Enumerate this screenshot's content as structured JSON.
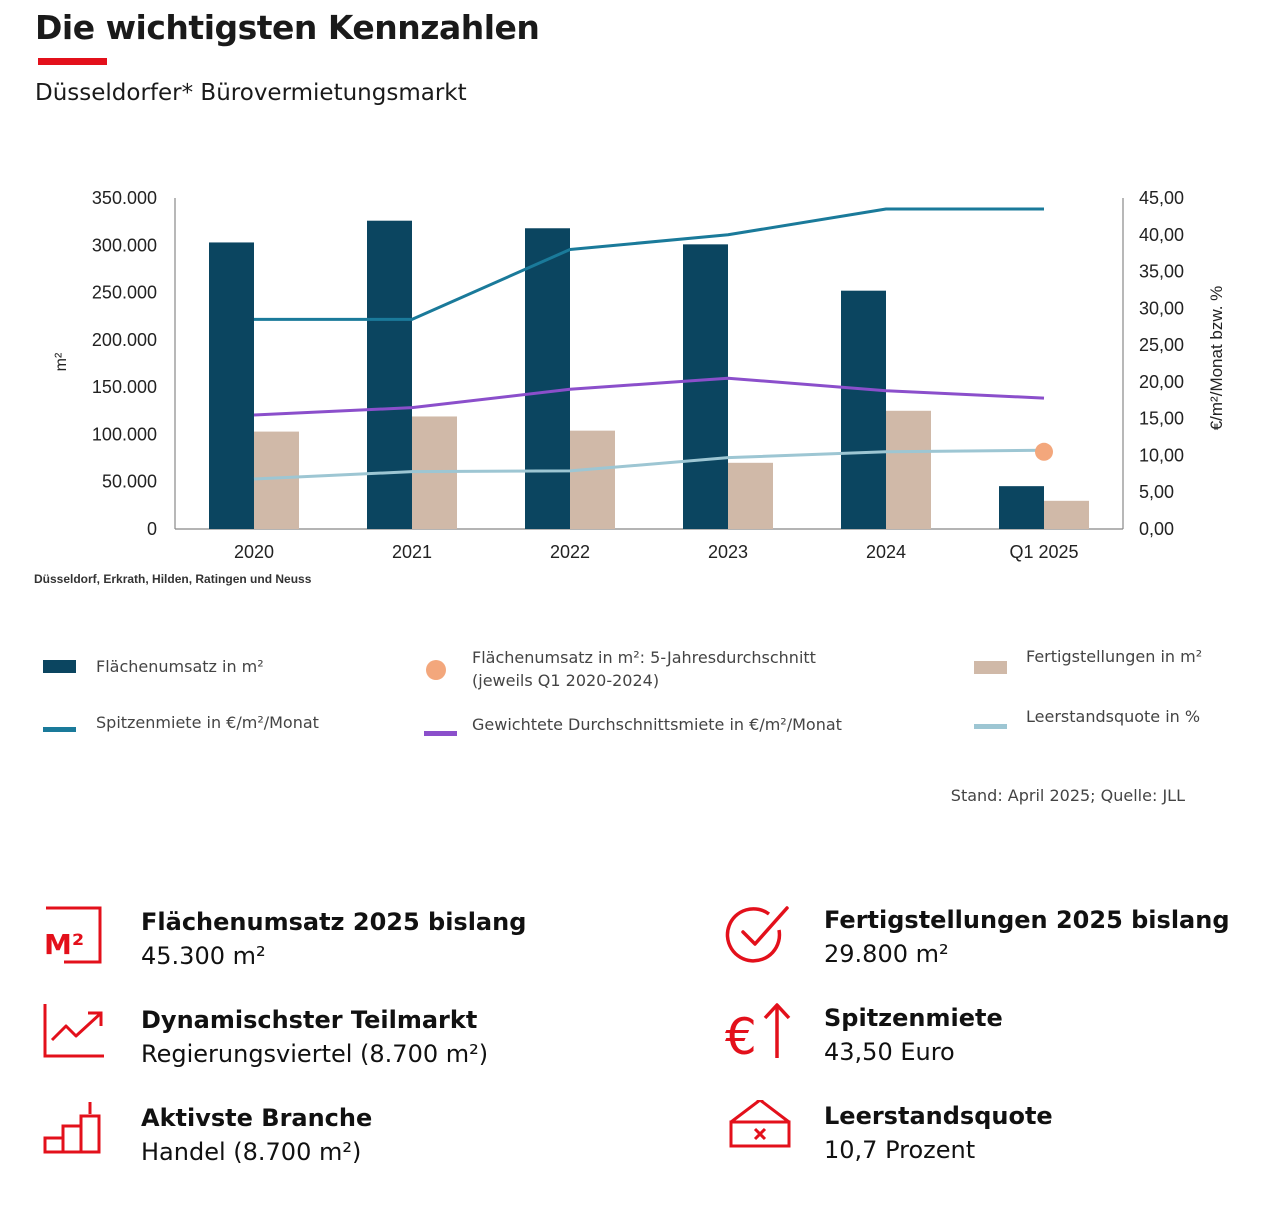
{
  "header": {
    "title": "Die wichtigsten Kennzahlen",
    "subtitle": "Düsseldorfer* Bürovermietungsmarkt",
    "accent_color": "#e3101b"
  },
  "chart_data": {
    "type": "bar",
    "categories": [
      "2020",
      "2021",
      "2022",
      "2023",
      "2024",
      "Q1 2025"
    ],
    "ylabel_left": "m²",
    "ylabel_right": "€/m²/Monat bzw. %",
    "ylim_left": [
      0,
      350000
    ],
    "ylim_right": [
      0,
      45
    ],
    "yticks_left": [
      "350.000",
      "300.000",
      "250.000",
      "200.000",
      "150.000",
      "100.000",
      "50.000",
      "0"
    ],
    "yticks_right": [
      "45,00",
      "40,00",
      "35,00",
      "30,00",
      "25,00",
      "20,00",
      "15,00",
      "10,00",
      "5,00",
      "0,00"
    ],
    "series": [
      {
        "name": "Flächenumsatz in m²",
        "kind": "bar",
        "axis": "left",
        "color": "#0b4560",
        "values": [
          303000,
          326000,
          318000,
          301000,
          252000,
          45300
        ]
      },
      {
        "name": "Fertigstellungen in m²",
        "kind": "bar",
        "axis": "left",
        "color": "#d0b9a8",
        "values": [
          103000,
          119000,
          104000,
          70000,
          125000,
          29800
        ]
      },
      {
        "name": "Spitzenmiete in €/m²/Monat",
        "kind": "line",
        "axis": "right",
        "color": "#1a7a9a",
        "values": [
          28.5,
          28.5,
          38.0,
          40.0,
          43.5,
          43.5
        ]
      },
      {
        "name": "Gewichtete Durchschnittsmiete in €/m²/Monat",
        "kind": "line",
        "axis": "right",
        "color": "#8b4fcb",
        "values": [
          15.5,
          16.5,
          19.0,
          20.5,
          18.8,
          17.8
        ]
      },
      {
        "name": "Leerstandsquote in %",
        "kind": "line",
        "axis": "right",
        "color": "#9dc6d3",
        "values": [
          6.8,
          7.8,
          7.9,
          9.7,
          10.5,
          10.7
        ]
      },
      {
        "name": "Flächenumsatz in m²: 5-Jahresdurchschnitt (jeweils Q1 2020-2024)",
        "kind": "point",
        "axis": "right",
        "color": "#f3a77c",
        "category": "Q1 2025",
        "value": 10.5
      }
    ],
    "footnote": "Düsseldorf, Erkrath, Hilden, Ratingen und Neuss"
  },
  "legend": [
    {
      "label": "Flächenumsatz in m²",
      "swatch": "bar",
      "color": "#0b4560"
    },
    {
      "label": "Flächenumsatz in m²: 5-Jahresdurchschnitt",
      "label2": "(jeweils Q1 2020-2024)",
      "swatch": "dot",
      "color": "#f3a77c"
    },
    {
      "label": "Fertigstellungen in m²",
      "swatch": "bar",
      "color": "#d0b9a8"
    },
    {
      "label": "Spitzenmiete in €/m²/Monat",
      "swatch": "line",
      "color": "#1a7a9a"
    },
    {
      "label": "Gewichtete Durchschnittsmiete in €/m²/Monat",
      "swatch": "line",
      "color": "#8b4fcb"
    },
    {
      "label": "Leerstandsquote in %",
      "swatch": "line",
      "color": "#9dc6d3"
    }
  ],
  "source": "Stand: April 2025; Quelle: JLL",
  "kpis": [
    {
      "icon": "m2-icon",
      "label": "Flächenumsatz 2025 bislang",
      "value": "45.300 m²",
      "icon_text": "M²"
    },
    {
      "icon": "checkmark-circle-icon",
      "label": "Fertigstellungen 2025 bislang",
      "value": "29.800 m²"
    },
    {
      "icon": "trend-chart-icon",
      "label": "Dynamischster Teilmarkt",
      "value": "Regierungsviertel (8.700 m²)"
    },
    {
      "icon": "euro-up-icon",
      "label": "Spitzenmiete",
      "value": "43,50 Euro",
      "icon_text": "€"
    },
    {
      "icon": "growth-bars-icon",
      "label": "Aktivste Branche",
      "value": "Handel (8.700 m²)"
    },
    {
      "icon": "vacancy-sign-icon",
      "label": "Leerstandsquote",
      "value": "10,7 Prozent"
    }
  ]
}
